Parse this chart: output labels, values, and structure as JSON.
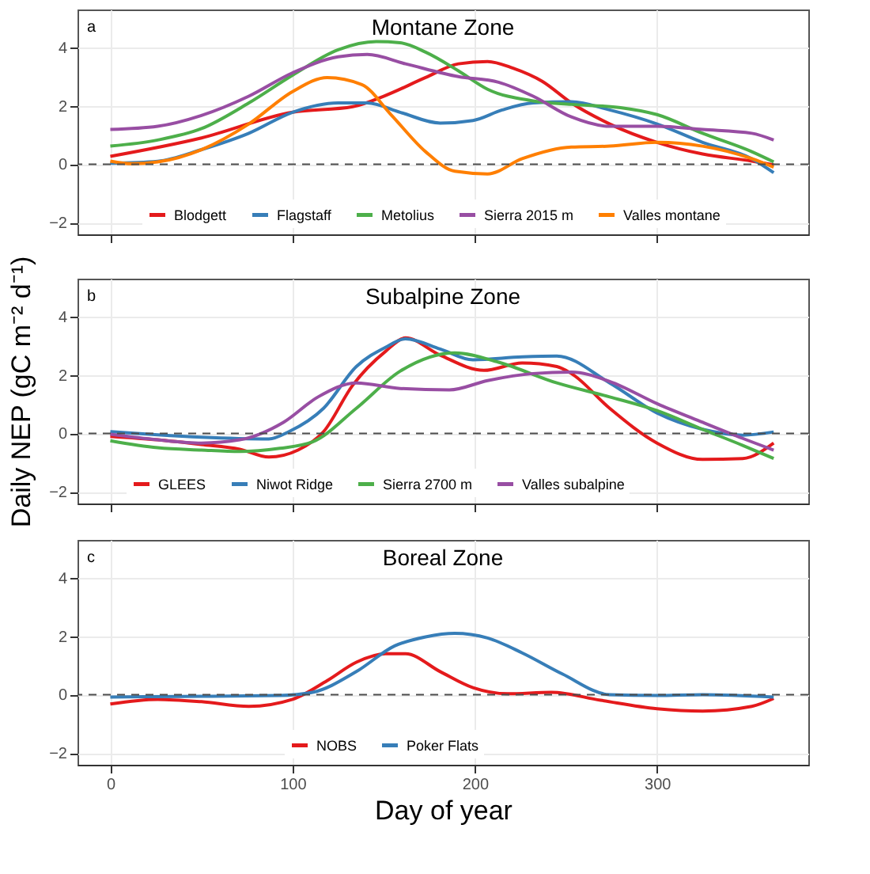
{
  "chart_data": [
    {
      "type": "line",
      "title": "Montane Zone",
      "annotations": [
        "a"
      ],
      "xlim": [
        -18,
        383
      ],
      "ylim": [
        -2.4,
        5.3
      ],
      "xticks": [
        0,
        100,
        200,
        300
      ],
      "yticks": [
        -2,
        0,
        2,
        4
      ],
      "grid": true,
      "legend": "bottom",
      "tick_labels": "y",
      "line_style": "solid",
      "marker": "none",
      "ref_lines": [
        {
          "axis": "y",
          "value": 0,
          "label": null,
          "color": "#4d4d4d",
          "line_style": "dashed"
        }
      ],
      "series": [
        {
          "name": "Blodgett",
          "color": "#e41a1c",
          "x": [
            0,
            50,
            100,
            133,
            150,
            173,
            191,
            207,
            221,
            237,
            253,
            274,
            300,
            325,
            352,
            364
          ],
          "values": [
            0.27,
            0.9,
            1.78,
            1.97,
            2.33,
            2.97,
            3.44,
            3.52,
            3.29,
            2.84,
            2.1,
            1.38,
            0.75,
            0.35,
            0.11,
            -0.02
          ]
        },
        {
          "name": "Flagstaff",
          "color": "#377eb8",
          "x": [
            0,
            26,
            50,
            76,
            100,
            125,
            141,
            159,
            181,
            199,
            215,
            232,
            253,
            274,
            300,
            325,
            352,
            364
          ],
          "values": [
            0.03,
            0.1,
            0.5,
            1.06,
            1.78,
            2.1,
            2.1,
            1.78,
            1.41,
            1.5,
            1.86,
            2.1,
            2.14,
            1.86,
            1.38,
            0.75,
            0.19,
            -0.29
          ]
        },
        {
          "name": "Metolius",
          "color": "#4daf4a",
          "x": [
            0,
            26,
            50,
            76,
            100,
            125,
            146,
            159,
            173,
            191,
            207,
            232,
            253,
            280,
            300,
            325,
            352,
            364
          ],
          "values": [
            0.62,
            0.83,
            1.22,
            2.1,
            3.05,
            3.92,
            4.2,
            4.16,
            3.84,
            3.2,
            2.57,
            2.17,
            2.05,
            1.94,
            1.7,
            1.06,
            0.43,
            0.08
          ]
        },
        {
          "name": "Sierra 2015 m",
          "color": "#984ea3",
          "x": [
            0,
            26,
            50,
            76,
            100,
            125,
            141,
            162,
            191,
            213,
            232,
            253,
            274,
            300,
            325,
            352,
            364
          ],
          "values": [
            1.19,
            1.3,
            1.67,
            2.33,
            3.13,
            3.68,
            3.76,
            3.44,
            3.0,
            2.81,
            2.33,
            1.62,
            1.3,
            1.3,
            1.19,
            1.06,
            0.83
          ]
        },
        {
          "name": "Valles montane",
          "color": "#ff7f00",
          "x": [
            0,
            12,
            26,
            50,
            76,
            100,
            119,
            138,
            154,
            173,
            189,
            207,
            226,
            253,
            274,
            300,
            325,
            352,
            364
          ],
          "values": [
            0.11,
            0.02,
            0.08,
            0.5,
            1.38,
            2.49,
            2.97,
            2.73,
            1.7,
            0.43,
            -0.24,
            -0.33,
            0.19,
            0.59,
            0.62,
            0.75,
            0.62,
            0.19,
            -0.1
          ]
        }
      ]
    },
    {
      "type": "line",
      "title": "Subalpine Zone",
      "ylabel": "Daily NEP (gC m⁻² d⁻¹)",
      "annotations": [
        "b"
      ],
      "xlim": [
        -18,
        383
      ],
      "ylim": [
        -2.4,
        5.3
      ],
      "xticks": [
        0,
        100,
        200,
        300
      ],
      "yticks": [
        -2,
        0,
        2,
        4
      ],
      "grid": true,
      "legend": "bottom",
      "tick_labels": "y",
      "line_style": "solid",
      "marker": "none",
      "ref_lines": [
        {
          "axis": "y",
          "value": 0,
          "label": null,
          "color": "#4d4d4d",
          "line_style": "dashed"
        }
      ],
      "series": [
        {
          "name": "GLEES",
          "color": "#e41a1c",
          "x": [
            0,
            26,
            50,
            71,
            87,
            103,
            117,
            133,
            151,
            162,
            181,
            205,
            226,
            245,
            253,
            274,
            300,
            325,
            347,
            364
          ],
          "values": [
            -0.1,
            -0.22,
            -0.38,
            -0.54,
            -0.81,
            -0.57,
            0.06,
            1.65,
            2.81,
            3.27,
            2.68,
            2.16,
            2.41,
            2.29,
            2.05,
            0.86,
            -0.33,
            -0.89,
            -0.86,
            -0.33
          ]
        },
        {
          "name": "Niwot Ridge",
          "color": "#377eb8",
          "x": [
            0,
            26,
            50,
            87,
            98,
            117,
            135,
            151,
            162,
            181,
            199,
            226,
            245,
            274,
            300,
            325,
            347,
            364
          ],
          "values": [
            0.06,
            -0.05,
            -0.13,
            -0.19,
            0.06,
            0.86,
            2.29,
            2.95,
            3.24,
            2.89,
            2.52,
            2.62,
            2.65,
            1.73,
            0.7,
            0.14,
            -0.06,
            0.05
          ]
        },
        {
          "name": "Sierra 2700 m",
          "color": "#4daf4a",
          "x": [
            0,
            26,
            50,
            71,
            93,
            111,
            135,
            159,
            189,
            213,
            245,
            274,
            300,
            325,
            347,
            364
          ],
          "values": [
            -0.25,
            -0.49,
            -0.57,
            -0.62,
            -0.51,
            -0.29,
            0.86,
            2.13,
            2.76,
            2.44,
            1.73,
            1.25,
            0.78,
            0.14,
            -0.41,
            -0.86
          ]
        },
        {
          "name": "Valles subalpine",
          "color": "#984ea3",
          "x": [
            0,
            26,
            50,
            71,
            95,
            114,
            135,
            159,
            186,
            207,
            232,
            253,
            274,
            300,
            325,
            347,
            364
          ],
          "values": [
            -0.03,
            -0.22,
            -0.33,
            -0.22,
            0.38,
            1.25,
            1.73,
            1.54,
            1.49,
            1.81,
            2.05,
            2.1,
            1.78,
            1.02,
            0.38,
            -0.17,
            -0.57
          ]
        }
      ]
    },
    {
      "type": "line",
      "title": "Boreal Zone",
      "xlabel": "Day of year",
      "annotations": [
        "c"
      ],
      "xlim": [
        -18,
        383
      ],
      "ylim": [
        -2.4,
        5.3
      ],
      "xticks": [
        0,
        100,
        200,
        300
      ],
      "yticks": [
        -2,
        0,
        2,
        4
      ],
      "grid": true,
      "legend": "bottom",
      "line_style": "solid",
      "marker": "none",
      "ref_lines": [
        {
          "axis": "y",
          "value": 0,
          "label": null,
          "color": "#4d4d4d",
          "line_style": "dashed"
        }
      ],
      "series": [
        {
          "name": "NOBS",
          "color": "#e41a1c",
          "x": [
            0,
            26,
            50,
            76,
            100,
            119,
            135,
            151,
            162,
            181,
            199,
            218,
            242,
            269,
            300,
            325,
            352,
            364
          ],
          "values": [
            -0.32,
            -0.16,
            -0.24,
            -0.4,
            -0.16,
            0.48,
            1.11,
            1.4,
            1.4,
            0.79,
            0.24,
            0.03,
            0.08,
            -0.19,
            -0.48,
            -0.56,
            -0.4,
            -0.13
          ]
        },
        {
          "name": "Poker Flats",
          "color": "#377eb8",
          "x": [
            0,
            39,
            93,
            111,
            135,
            156,
            173,
            189,
            207,
            226,
            248,
            274,
            300,
            325,
            364
          ],
          "values": [
            -0.08,
            -0.06,
            -0.03,
            0.08,
            0.79,
            1.67,
            1.98,
            2.1,
            1.94,
            1.43,
            0.71,
            0,
            -0.03,
            0,
            -0.08
          ]
        }
      ]
    }
  ]
}
